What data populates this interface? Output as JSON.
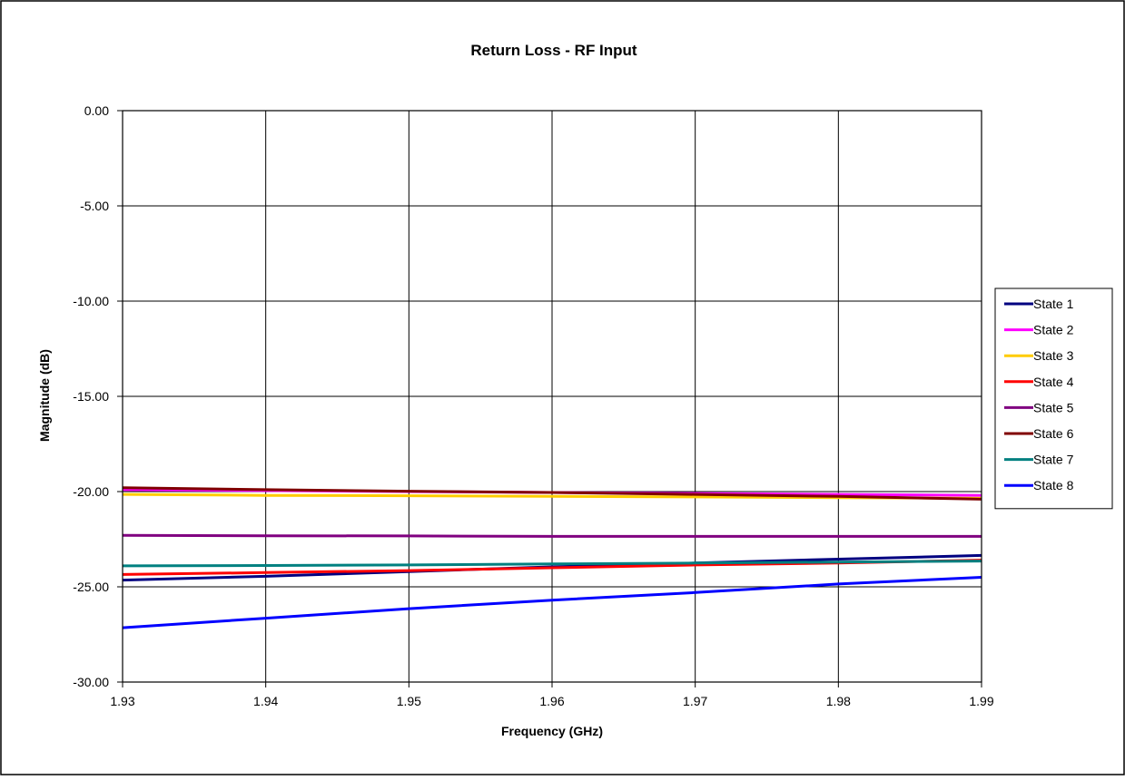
{
  "chart_data": {
    "type": "line",
    "title": "Return Loss - RF Input",
    "xlabel": "Frequency (GHz)",
    "ylabel": "Magnitude (dB)",
    "xlim": [
      1.93,
      1.99
    ],
    "ylim": [
      -30,
      0
    ],
    "x_ticks": [
      "1.93",
      "1.94",
      "1.95",
      "1.96",
      "1.97",
      "1.98",
      "1.99"
    ],
    "y_ticks": [
      "0.00",
      "-5.00",
      "-10.00",
      "-15.00",
      "-20.00",
      "-25.00",
      "-30.00"
    ],
    "grid": true,
    "legend_position": "right",
    "x": [
      1.93,
      1.94,
      1.95,
      1.96,
      1.97,
      1.98,
      1.99
    ],
    "series": [
      {
        "name": "State 1",
        "color": "#000080",
        "values": [
          -24.65,
          -24.45,
          -24.2,
          -23.95,
          -23.75,
          -23.55,
          -23.35
        ]
      },
      {
        "name": "State 2",
        "color": "#ff00ff",
        "values": [
          -19.9,
          -19.95,
          -20.0,
          -20.05,
          -20.1,
          -20.15,
          -20.2
        ]
      },
      {
        "name": "State 3",
        "color": "#ffcc00",
        "values": [
          -20.15,
          -20.2,
          -20.22,
          -20.25,
          -20.28,
          -20.32,
          -20.35
        ]
      },
      {
        "name": "State 4",
        "color": "#ff0000",
        "values": [
          -24.35,
          -24.25,
          -24.15,
          -24.0,
          -23.85,
          -23.75,
          -23.6
        ]
      },
      {
        "name": "State 5",
        "color": "#800080",
        "values": [
          -22.3,
          -22.32,
          -22.33,
          -22.35,
          -22.35,
          -22.35,
          -22.35
        ]
      },
      {
        "name": "State 6",
        "color": "#800000",
        "values": [
          -19.8,
          -19.9,
          -19.98,
          -20.05,
          -20.15,
          -20.25,
          -20.4
        ]
      },
      {
        "name": "State 7",
        "color": "#008080",
        "values": [
          -23.9,
          -23.88,
          -23.85,
          -23.8,
          -23.75,
          -23.7,
          -23.65
        ]
      },
      {
        "name": "State 8",
        "color": "#0000ff",
        "values": [
          -27.15,
          -26.65,
          -26.15,
          -25.7,
          -25.3,
          -24.85,
          -24.5
        ]
      }
    ]
  }
}
